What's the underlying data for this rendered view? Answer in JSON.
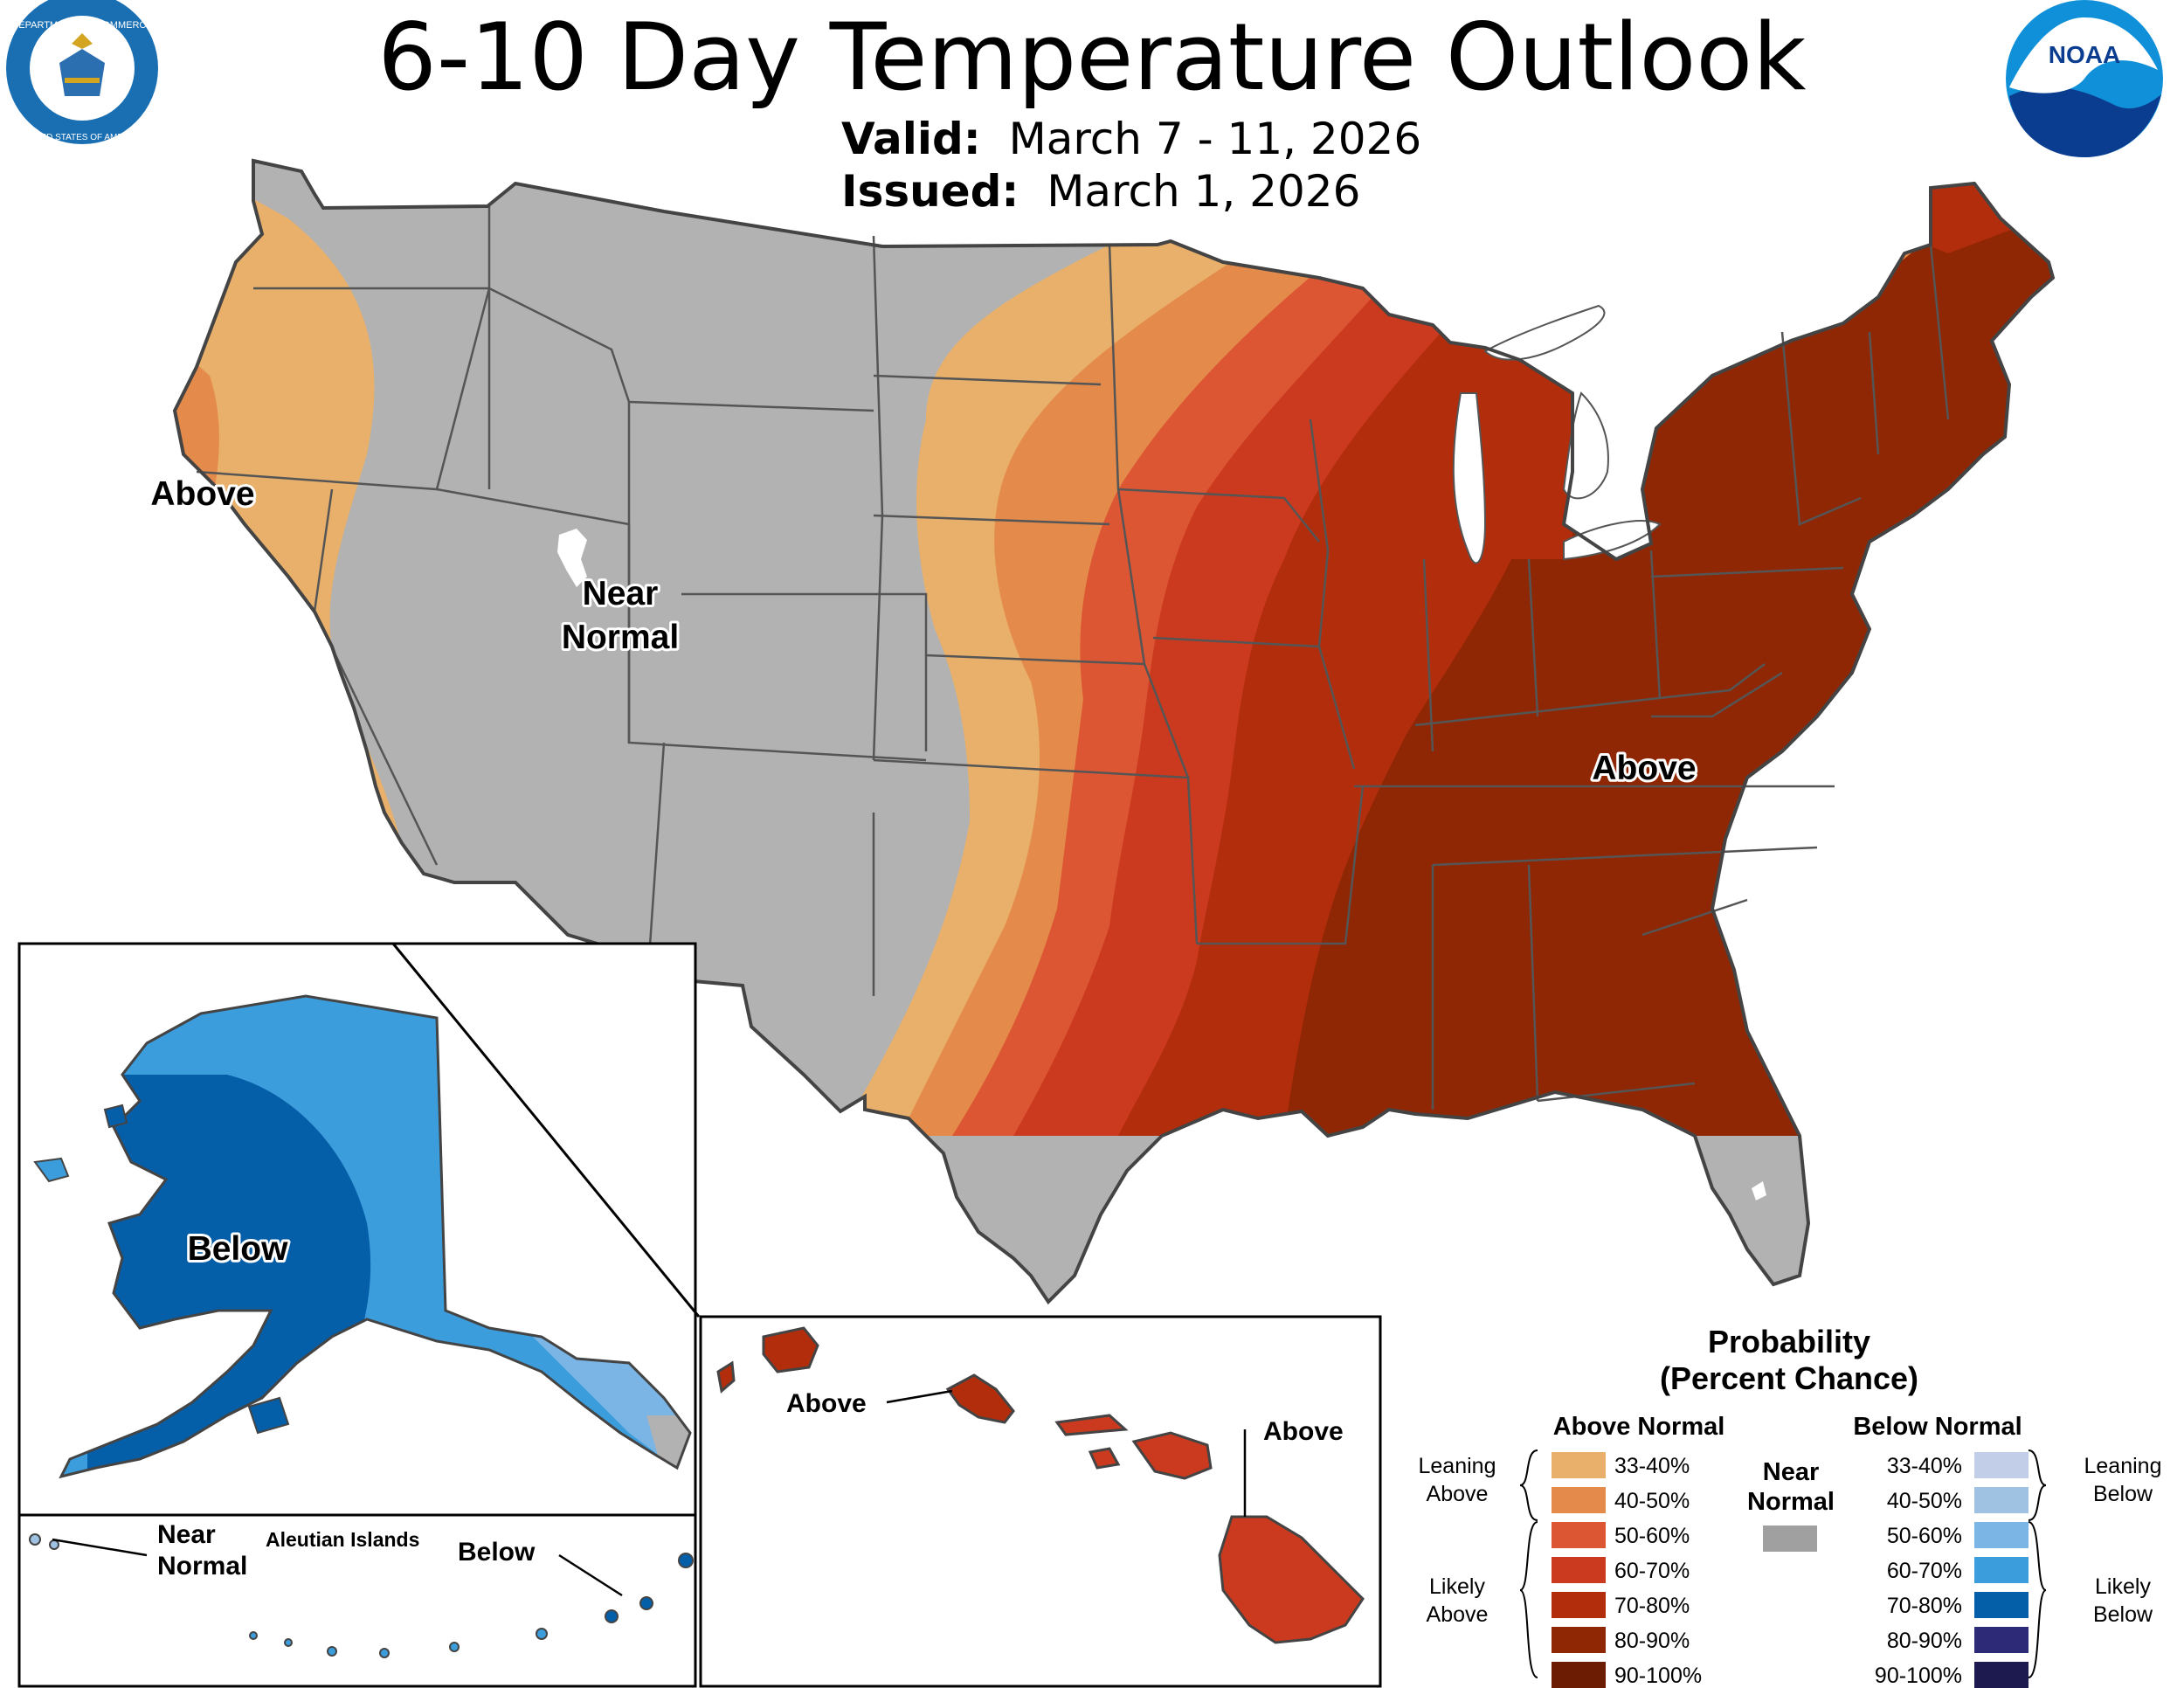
{
  "header": {
    "title": "6-10 Day Temperature Outlook",
    "valid_label": "Valid:",
    "valid_value": "March 7 - 11, 2026",
    "issued_label": "Issued:",
    "issued_value": "March 1, 2026"
  },
  "logos": {
    "commerce": {
      "ring_text": "DEPARTMENT OF COMMERCE",
      "ring_text_bottom": "UNITED STATES OF AMERICA",
      "icon": "commerce-seal-icon"
    },
    "noaa": {
      "text": "NOAA",
      "icon": "noaa-logo-icon"
    }
  },
  "map_labels": {
    "west_coast": "Above",
    "great_basin_line1": "Near",
    "great_basin_line2": "Normal",
    "southeast": "Above",
    "alaska": "Below",
    "aleutians_near_line1": "Near",
    "aleutians_near_line2": "Normal",
    "aleutians_title": "Aleutian Islands",
    "aleutians_below": "Below",
    "hawaii_west": "Above",
    "hawaii_east": "Above"
  },
  "legend": {
    "title_line1": "Probability",
    "title_line2": "(Percent Chance)",
    "above_header": "Above Normal",
    "below_header": "Below Normal",
    "near_line1": "Near",
    "near_line2": "Normal",
    "near_color": "#a0a0a0",
    "leaning_above_1": "Leaning",
    "leaning_above_2": "Above",
    "likely_above_1": "Likely",
    "likely_above_2": "Above",
    "leaning_below_1": "Leaning",
    "leaning_below_2": "Below",
    "likely_below_1": "Likely",
    "likely_below_2": "Below",
    "above": [
      {
        "label": "33-40%",
        "color": "#e8b06a"
      },
      {
        "label": "40-50%",
        "color": "#e48a4a"
      },
      {
        "label": "50-60%",
        "color": "#dc5634"
      },
      {
        "label": "60-70%",
        "color": "#cb3a1e"
      },
      {
        "label": "70-80%",
        "color": "#b22d0c"
      },
      {
        "label": "80-90%",
        "color": "#8f2704"
      },
      {
        "label": "90-100%",
        "color": "#6b1c02"
      }
    ],
    "below": [
      {
        "label": "33-40%",
        "color": "#c2cee8"
      },
      {
        "label": "40-50%",
        "color": "#9fc1e2"
      },
      {
        "label": "50-60%",
        "color": "#7ab5e6"
      },
      {
        "label": "60-70%",
        "color": "#3c9ddc"
      },
      {
        "label": "70-80%",
        "color": "#055ea8"
      },
      {
        "label": "80-90%",
        "color": "#2d2a78"
      },
      {
        "label": "90-100%",
        "color": "#1c1a4e"
      }
    ]
  }
}
